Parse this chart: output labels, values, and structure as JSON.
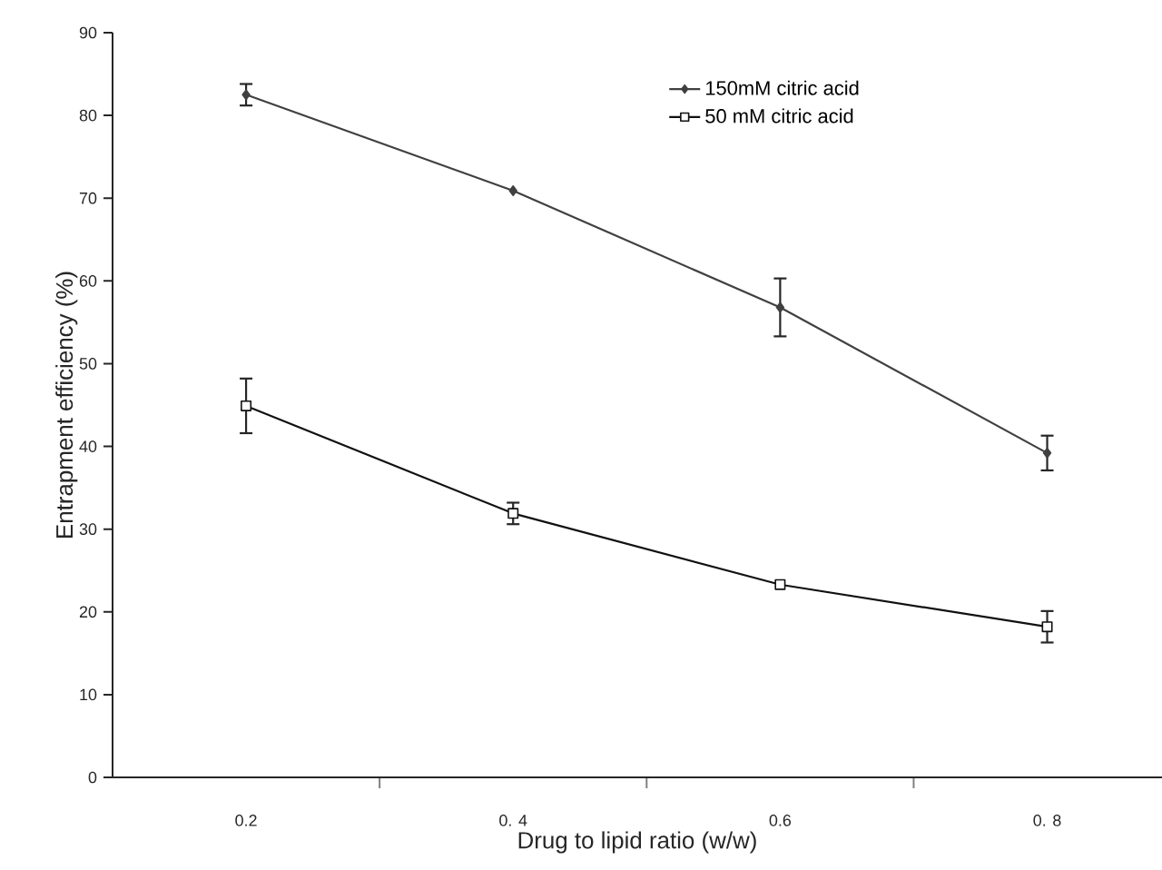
{
  "chart_data": {
    "type": "line",
    "xlabel": "Drug to lipid ratio (w/w)",
    "ylabel": "Entrapment efficiency (%)",
    "categories": [
      "0.2",
      "0. 4",
      "0.6",
      "0. 8"
    ],
    "series": [
      {
        "name": "150mM citric acid",
        "color": "#404040",
        "marker": "diamond",
        "values": [
          82.5,
          70.9,
          56.8,
          39.2
        ],
        "errors": [
          1.3,
          null,
          3.5,
          2.1
        ]
      },
      {
        "name": "50  mM citric acid",
        "color": "#111111",
        "marker": "square",
        "values": [
          44.9,
          31.9,
          23.3,
          18.2
        ],
        "errors": [
          3.3,
          1.3,
          null,
          1.9
        ]
      }
    ],
    "ylim": [
      0,
      90
    ],
    "yticks": [
      0,
      10,
      20,
      30,
      40,
      50,
      60,
      70,
      80,
      90
    ],
    "legend": "top right",
    "grid": false,
    "line_style": "solid"
  }
}
